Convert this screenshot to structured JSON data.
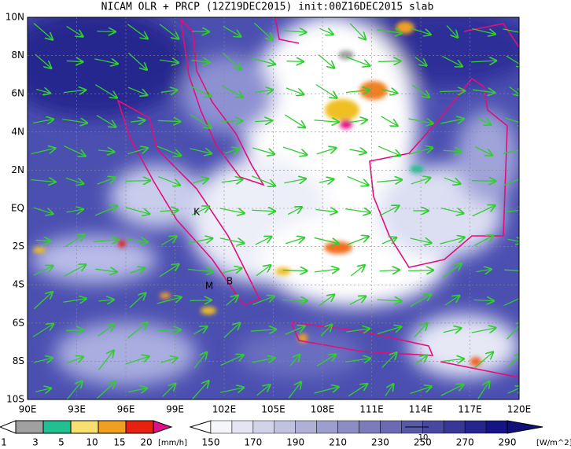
{
  "title": "NICAM OLR + PRCP (12Z19DEC2015) init:00Z16DEC2015 slab",
  "lat_labels": [
    "10N",
    "8N",
    "6N",
    "4N",
    "2N",
    "EQ",
    "2S",
    "4S",
    "6S",
    "8S",
    "10S"
  ],
  "lon_labels": [
    "90E",
    "93E",
    "96E",
    "99E",
    "102E",
    "105E",
    "108E",
    "111E",
    "114E",
    "117E",
    "120E"
  ],
  "places": [
    "K",
    "M",
    "B"
  ],
  "precip_scale": {
    "labels": [
      1,
      3,
      5,
      10,
      15,
      20
    ],
    "unit": "[mm/h]"
  },
  "olr_scale": {
    "labels": [
      150,
      170,
      190,
      210,
      230,
      250,
      270,
      290
    ],
    "unit": "[W/m^2]"
  },
  "vector_reference": "10"
}
